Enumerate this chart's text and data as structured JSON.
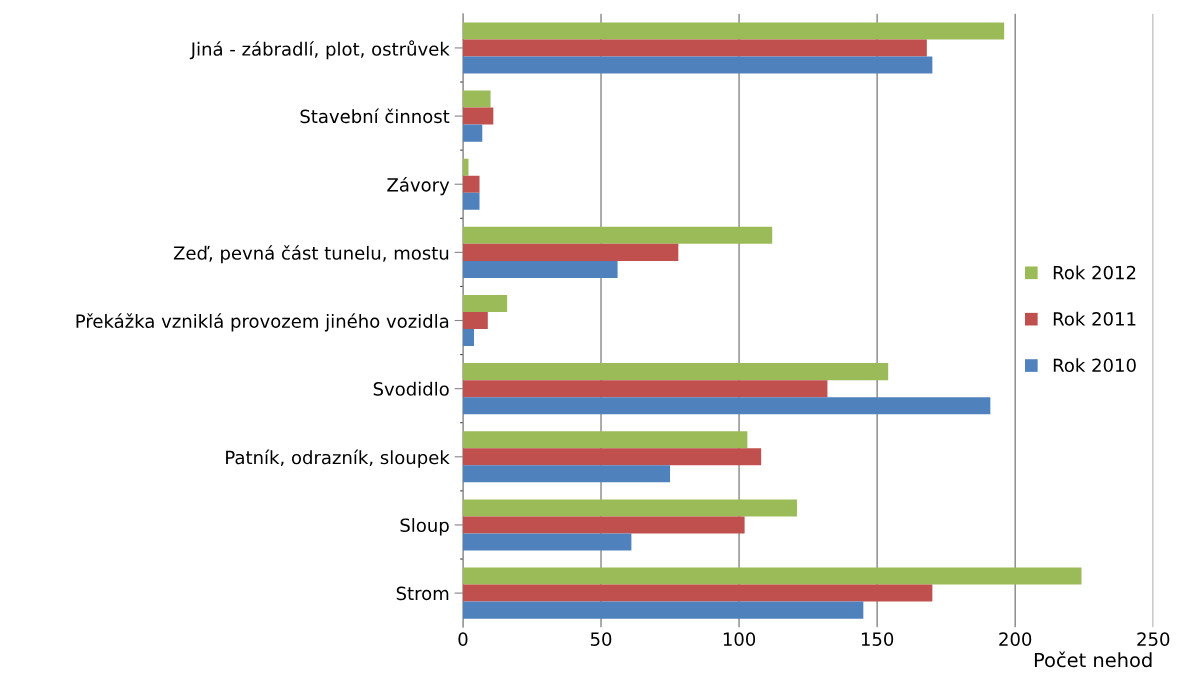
{
  "chart_data": {
    "type": "bar",
    "orientation": "horizontal",
    "xlabel": "Počet nehod",
    "categories": [
      "Jiná - zábradlí, plot, ostrůvek",
      "Stavební činnost",
      "Závory",
      "Zeď, pevná část tunelu, mostu",
      "Překážka vzniklá provozem jiného vozidla",
      "Svodidlo",
      "Patník, odrazník, sloupek",
      "Sloup",
      "Strom"
    ],
    "series": [
      {
        "name": "Rok 2012",
        "color": "#9bbb59",
        "values": [
          196,
          10,
          2,
          112,
          16,
          154,
          103,
          121,
          224
        ]
      },
      {
        "name": "Rok 2011",
        "color": "#c0504d",
        "values": [
          168,
          11,
          6,
          78,
          9,
          132,
          108,
          102,
          170
        ]
      },
      {
        "name": "Rok 2010",
        "color": "#4f81bd",
        "values": [
          170,
          7,
          6,
          56,
          4,
          191,
          75,
          61,
          145
        ]
      }
    ],
    "xlim": [
      0,
      250
    ],
    "xticks": [
      0,
      50,
      100,
      150,
      200,
      250
    ],
    "grid": "x",
    "legend": "right"
  }
}
